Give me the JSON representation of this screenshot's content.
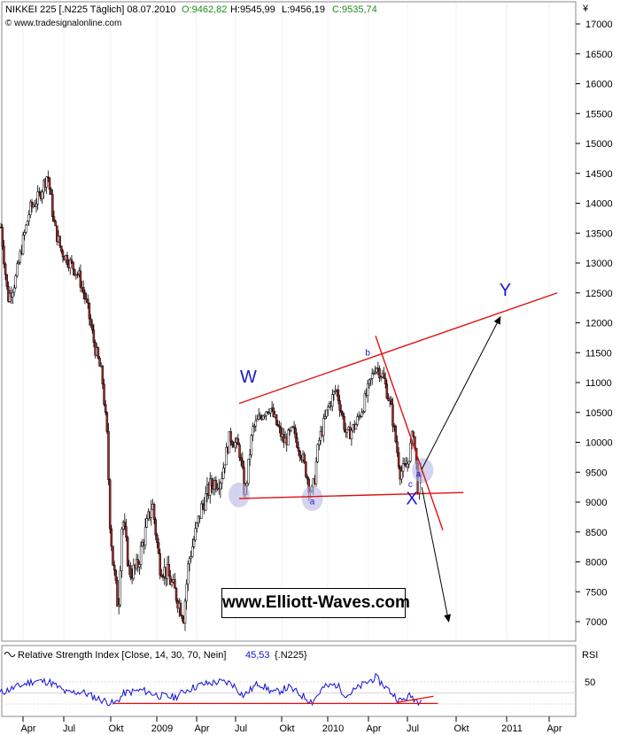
{
  "header": {
    "symbol": "NIKKEI 225 [.N225  Täglich] 08.07.2010",
    "open": "O:9462,82",
    "high": "H:9545,99",
    "low": "L:9456,19",
    "close": "C:9535,74",
    "source": "© www.tradesignalonline.com",
    "currency": "¥"
  },
  "watermark": "www.Elliott-Waves.com",
  "colors": {
    "ohlc_green": "#1e8c1e",
    "candle_up": "#ffffff",
    "candle_down": "#a52a2a",
    "trendline": "#e01010",
    "wave_label": "#1a1ad0",
    "rsi_line": "#1010d8",
    "circle": "#b8b8e6"
  },
  "waves": {
    "W": "W",
    "X": "X",
    "Y": "Y",
    "a": "a",
    "b": "b",
    "c": "c",
    "sub": "a"
  },
  "rsi": {
    "title": "Relative Strength Index [Close, 14, 30, 70, Nein]",
    "value": "45,53",
    "symbol": "{.N225}",
    "axis_label": "RSI",
    "level_label": "50"
  },
  "chart_data": {
    "type": "candlestick",
    "title": "NIKKEI 225",
    "ylabel": "¥",
    "ylim": [
      6700,
      17300
    ],
    "yticks": [
      "17000",
      "16500",
      "16000",
      "15500",
      "15000",
      "14500",
      "14000",
      "13500",
      "13000",
      "12500",
      "12000",
      "11500",
      "11000",
      "10500",
      "10000",
      "9500",
      "9000",
      "8500",
      "8000",
      "7500",
      "7000"
    ],
    "xticks": [
      "Apr",
      "Jul",
      "Okt",
      "2009",
      "Apr",
      "Jul",
      "Okt",
      "2010",
      "Apr",
      "Jul",
      "Okt",
      "2011",
      "Apr"
    ],
    "price_path": [
      [
        "2008-03-03",
        13600
      ],
      [
        "2008-03-17",
        12400
      ],
      [
        "2008-04-01",
        12700
      ],
      [
        "2008-04-15",
        13300
      ],
      [
        "2008-05-01",
        13900
      ],
      [
        "2008-05-19",
        14100
      ],
      [
        "2008-06-06",
        14500
      ],
      [
        "2008-06-20",
        13600
      ],
      [
        "2008-07-04",
        13200
      ],
      [
        "2008-07-22",
        13000
      ],
      [
        "2008-08-08",
        12800
      ],
      [
        "2008-08-25",
        12300
      ],
      [
        "2008-09-10",
        11600
      ],
      [
        "2008-09-25",
        11100
      ],
      [
        "2008-10-06",
        10000
      ],
      [
        "2008-10-10",
        8800
      ],
      [
        "2008-10-17",
        8000
      ],
      [
        "2008-10-28",
        7200
      ],
      [
        "2008-11-05",
        8800
      ],
      [
        "2008-11-20",
        7800
      ],
      [
        "2008-12-05",
        7900
      ],
      [
        "2008-12-22",
        8500
      ],
      [
        "2009-01-05",
        9000
      ],
      [
        "2009-01-20",
        7950
      ],
      [
        "2009-02-05",
        7800
      ],
      [
        "2009-02-20",
        7500
      ],
      [
        "2009-03-10",
        7100
      ],
      [
        "2009-03-20",
        8000
      ],
      [
        "2009-04-01",
        8400
      ],
      [
        "2009-04-15",
        8900
      ],
      [
        "2009-05-05",
        9300
      ],
      [
        "2009-05-25",
        9400
      ],
      [
        "2009-06-12",
        10100
      ],
      [
        "2009-07-01",
        9900
      ],
      [
        "2009-07-13",
        9100
      ],
      [
        "2009-07-28",
        10200
      ],
      [
        "2009-08-18",
        10500
      ],
      [
        "2009-09-01",
        10600
      ],
      [
        "2009-09-15",
        10300
      ],
      [
        "2009-10-01",
        10000
      ],
      [
        "2009-10-19",
        10200
      ],
      [
        "2009-11-05",
        9800
      ],
      [
        "2009-11-27",
        9100
      ],
      [
        "2009-12-10",
        10000
      ],
      [
        "2009-12-30",
        10600
      ],
      [
        "2010-01-15",
        10900
      ],
      [
        "2010-02-05",
        10100
      ],
      [
        "2010-02-24",
        10300
      ],
      [
        "2010-03-10",
        10600
      ],
      [
        "2010-03-25",
        11000
      ],
      [
        "2010-04-05",
        11300
      ],
      [
        "2010-04-20",
        11100
      ],
      [
        "2010-05-06",
        10600
      ],
      [
        "2010-05-25",
        9500
      ],
      [
        "2010-06-08",
        9600
      ],
      [
        "2010-06-21",
        10200
      ],
      [
        "2010-07-01",
        9200
      ],
      [
        "2010-07-08",
        9536
      ]
    ],
    "trendlines": [
      {
        "name": "W-Y upper trendline",
        "from": [
          "2009-07-01",
          10650
        ],
        "to": [
          "2011-04-10",
          12500
        ]
      },
      {
        "name": "horizontal support",
        "from": [
          "2009-07-01",
          9060
        ],
        "to": [
          "2010-10-01",
          9160
        ]
      },
      {
        "name": "downtrend from b",
        "from": [
          "2010-04-05",
          11780
        ],
        "to": [
          "2010-08-20",
          8530
        ]
      }
    ],
    "projections": [
      {
        "from": [
          "2010-07-08",
          9550
        ],
        "to": [
          "2010-12-15",
          12100
        ]
      },
      {
        "from": [
          "2010-07-08",
          9250
        ],
        "to": [
          "2010-09-01",
          7000
        ]
      }
    ],
    "circles": [
      [
        "2009-07-01",
        9120
      ],
      [
        "2009-11-27",
        9060
      ],
      [
        "2010-07-10",
        9530
      ]
    ],
    "wave_labels": [
      {
        "key": "W",
        "at": [
          "2009-07-20",
          11000
        ]
      },
      {
        "key": "X",
        "at": [
          "2010-06-18",
          8960
        ]
      },
      {
        "key": "Y",
        "at": [
          "2010-12-25",
          12450
        ]
      },
      {
        "key": "a",
        "at": [
          "2009-11-27",
          8960
        ]
      },
      {
        "key": "b",
        "at": [
          "2010-03-20",
          11450
        ]
      },
      {
        "key": "c",
        "at": [
          "2010-06-15",
          9250
        ]
      },
      {
        "key": "sub",
        "at": [
          "2010-07-01",
          9420
        ]
      }
    ],
    "rsi": {
      "ylim": [
        20,
        90
      ],
      "levels": [
        30,
        50,
        70
      ],
      "path": [
        [
          "2008-03-01",
          50
        ],
        [
          "2008-04-01",
          60
        ],
        [
          "2008-05-10",
          72
        ],
        [
          "2008-06-10",
          70
        ],
        [
          "2008-07-15",
          50
        ],
        [
          "2008-08-15",
          52
        ],
        [
          "2008-09-15",
          40
        ],
        [
          "2008-10-20",
          30
        ],
        [
          "2008-11-10",
          50
        ],
        [
          "2008-12-15",
          55
        ],
        [
          "2009-01-20",
          45
        ],
        [
          "2009-02-20",
          42
        ],
        [
          "2009-03-15",
          55
        ],
        [
          "2009-04-15",
          65
        ],
        [
          "2009-05-20",
          70
        ],
        [
          "2009-06-15",
          68
        ],
        [
          "2009-07-10",
          45
        ],
        [
          "2009-08-10",
          68
        ],
        [
          "2009-09-10",
          50
        ],
        [
          "2009-10-10",
          60
        ],
        [
          "2009-11-27",
          34
        ],
        [
          "2009-12-20",
          60
        ],
        [
          "2010-01-15",
          65
        ],
        [
          "2010-02-05",
          45
        ],
        [
          "2010-03-05",
          62
        ],
        [
          "2010-04-05",
          78
        ],
        [
          "2010-05-10",
          48
        ],
        [
          "2010-05-25",
          35
        ],
        [
          "2010-06-15",
          45
        ],
        [
          "2010-07-01",
          35
        ],
        [
          "2010-07-08",
          45.5
        ]
      ],
      "trendlines": [
        {
          "from": [
            "2008-10-20",
            31
          ],
          "to": [
            "2010-08-10",
            31
          ]
        },
        {
          "from": [
            "2010-05-20",
            33
          ],
          "to": [
            "2010-08-01",
            44
          ]
        }
      ]
    }
  }
}
